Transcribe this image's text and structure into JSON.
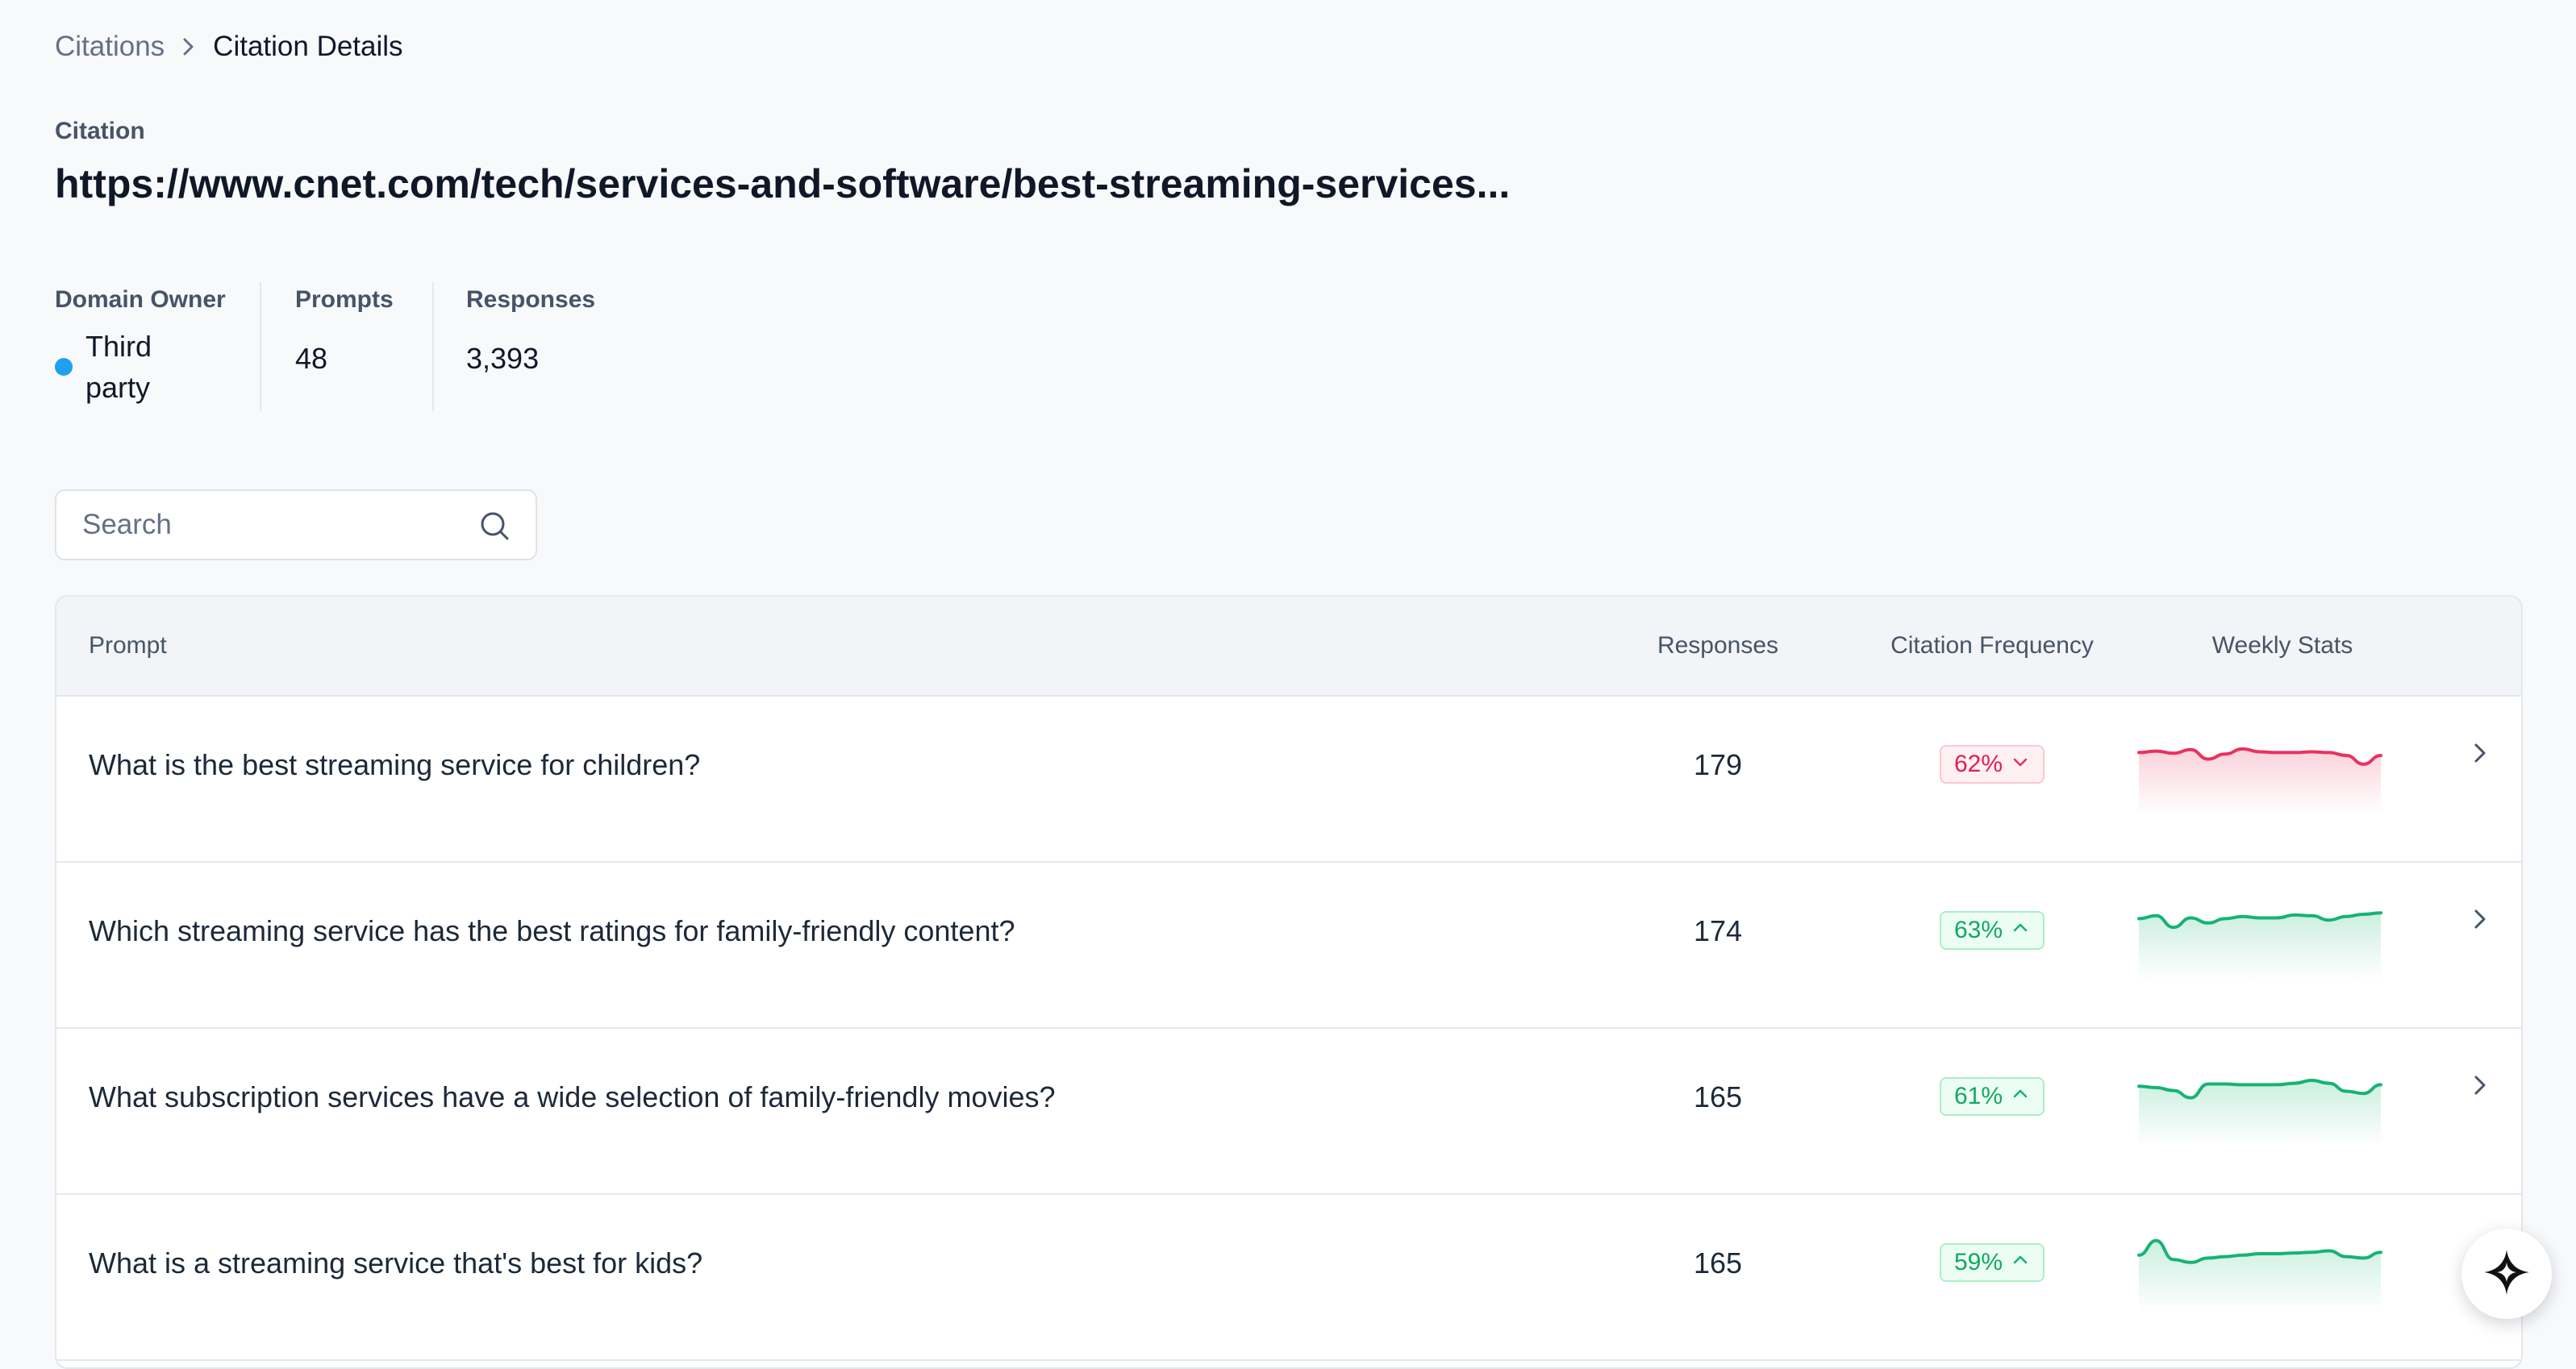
{
  "breadcrumb": {
    "parent": "Citations",
    "current": "Citation Details"
  },
  "citation": {
    "label": "Citation",
    "url": "https://www.cnet.com/tech/services-and-software/best-streaming-services..."
  },
  "stats": {
    "domain_owner_label": "Domain Owner",
    "domain_owner_value": "Third party",
    "domain_owner_color": "#1fa1f0",
    "prompts_label": "Prompts",
    "prompts_value": "48",
    "responses_label": "Responses",
    "responses_value": "3,393"
  },
  "search": {
    "placeholder": "Search"
  },
  "table": {
    "headers": {
      "prompt": "Prompt",
      "responses": "Responses",
      "citation_frequency": "Citation Frequency",
      "weekly_stats": "Weekly Stats"
    },
    "rows": [
      {
        "prompt": "What is the best streaming service for children?",
        "responses": "179",
        "frequency": "62%",
        "trend": "down",
        "weekly": [
          0.74,
          0.76,
          0.73,
          0.78,
          0.65,
          0.72,
          0.79,
          0.75,
          0.74,
          0.74,
          0.75,
          0.74,
          0.7,
          0.58,
          0.7
        ]
      },
      {
        "prompt": "Which streaming service has the best ratings for family-friendly content?",
        "responses": "174",
        "frequency": "63%",
        "trend": "up",
        "weekly": [
          0.74,
          0.78,
          0.62,
          0.75,
          0.68,
          0.74,
          0.77,
          0.75,
          0.75,
          0.79,
          0.78,
          0.72,
          0.77,
          0.8,
          0.82
        ]
      },
      {
        "prompt": "What subscription services have a wide selection of family-friendly movies?",
        "responses": "165",
        "frequency": "61%",
        "trend": "up",
        "weekly": [
          0.72,
          0.7,
          0.66,
          0.56,
          0.75,
          0.75,
          0.74,
          0.74,
          0.74,
          0.76,
          0.8,
          0.76,
          0.65,
          0.62,
          0.74
        ]
      },
      {
        "prompt": "What is a streaming service that's best for kids?",
        "responses": "165",
        "frequency": "59%",
        "trend": "up",
        "weekly": [
          0.68,
          0.88,
          0.62,
          0.58,
          0.64,
          0.66,
          0.68,
          0.7,
          0.7,
          0.71,
          0.72,
          0.74,
          0.66,
          0.64,
          0.72
        ]
      }
    ]
  },
  "colors": {
    "down": "#e8335f",
    "up": "#16b375"
  },
  "icons": {
    "breadcrumb_separator": "chevron-right-icon",
    "search": "search-icon",
    "row_action": "chevron-right-icon",
    "assistant": "sparkle-icon"
  }
}
